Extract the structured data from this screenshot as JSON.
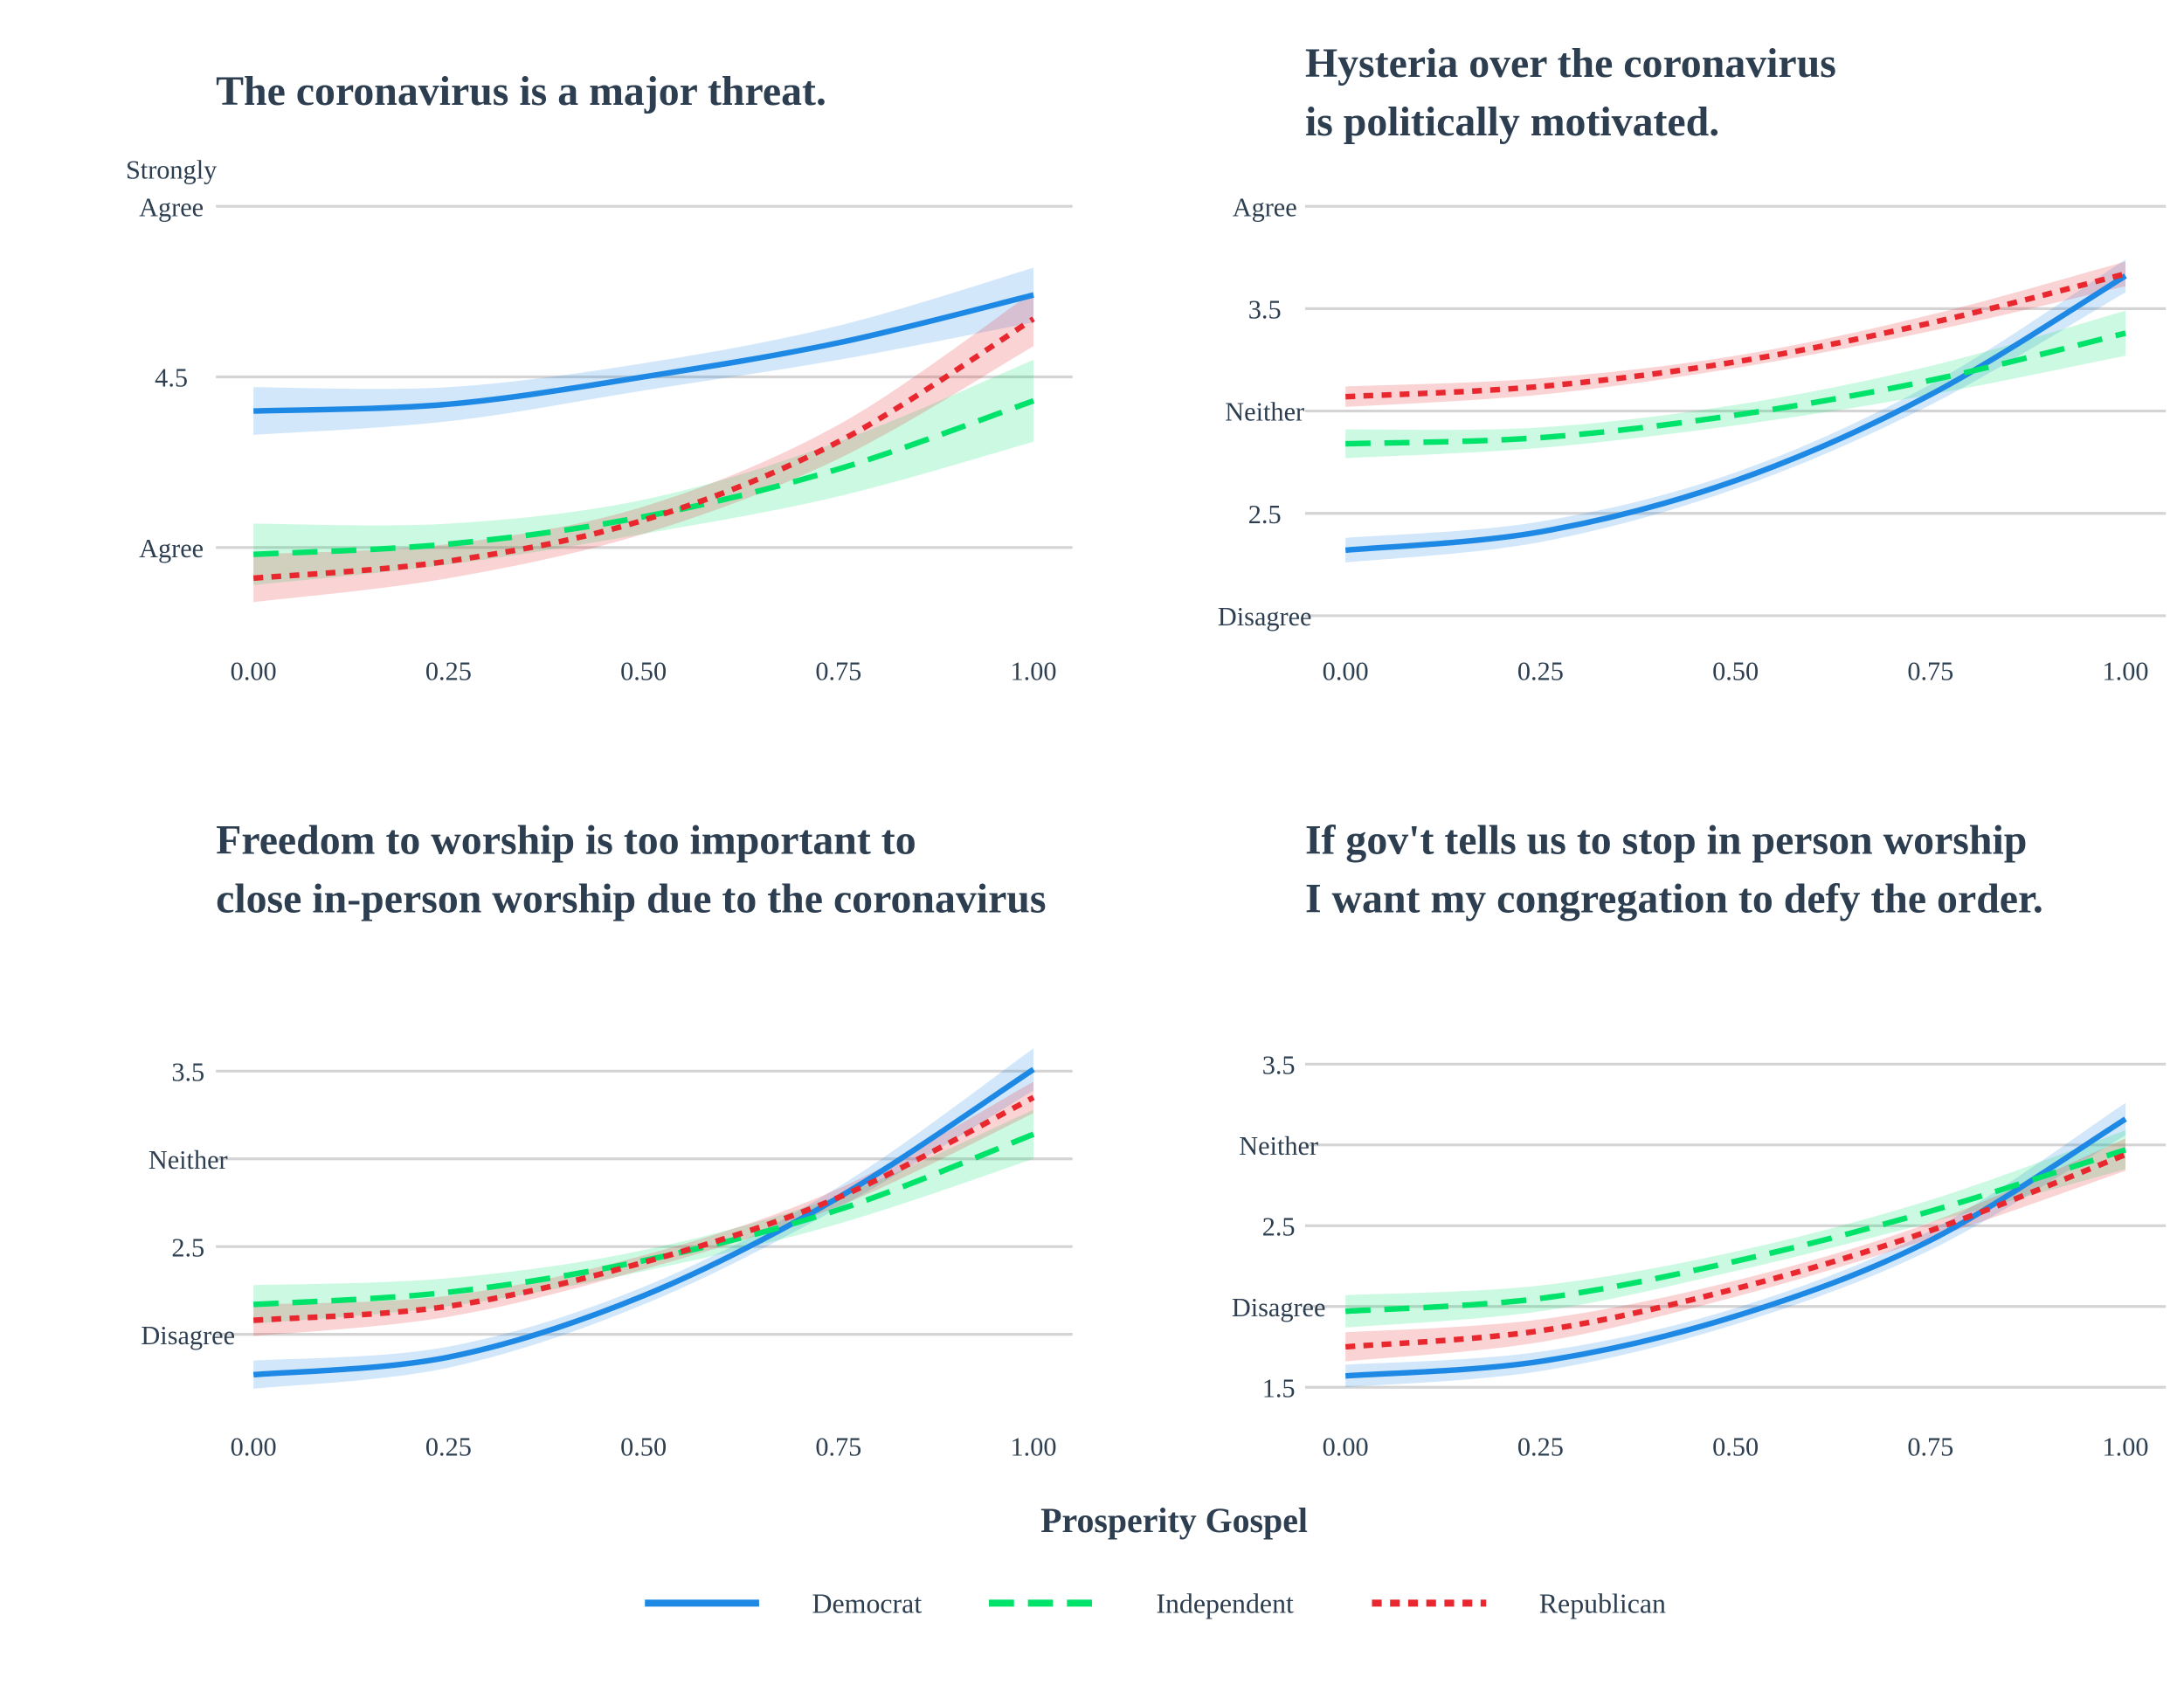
{
  "chart_data": {
    "type": "line",
    "xlabel": "Prosperity Gospel",
    "legend": {
      "position": "bottom",
      "entries": [
        "Democrat",
        "Independent",
        "Republican"
      ]
    },
    "series_styles": [
      {
        "name": "Democrat",
        "color": "#1e88e5",
        "dash": "solid"
      },
      {
        "name": "Independent",
        "color": "#00e36a",
        "dash": "dashed"
      },
      {
        "name": "Republican",
        "color": "#e8282e",
        "dash": "dotted"
      }
    ],
    "x": [
      0,
      0.25,
      0.5,
      0.75,
      1.0
    ],
    "x_ticks": [
      "0.00",
      "0.25",
      "0.50",
      "0.75",
      "1.00"
    ],
    "panels": [
      {
        "title": [
          "The coronavirus is a major threat."
        ],
        "y_ticks": [
          {
            "value": 5,
            "label": [
              "Strongly",
              "Agree"
            ]
          },
          {
            "value": 4.5,
            "label": [
              "4.5"
            ]
          },
          {
            "value": 4,
            "label": [
              "Agree"
            ]
          }
        ],
        "series": [
          {
            "name": "Democrat",
            "values": [
              4.4,
              4.42,
              4.5,
              4.6,
              4.74
            ],
            "ci": [
              0.07,
              0.05,
              0.04,
              0.05,
              0.08
            ]
          },
          {
            "name": "Independent",
            "values": [
              3.98,
              4.01,
              4.09,
              4.23,
              4.43
            ],
            "ci": [
              0.09,
              0.06,
              0.05,
              0.08,
              0.12
            ]
          },
          {
            "name": "Republican",
            "values": [
              3.91,
              3.96,
              4.08,
              4.31,
              4.67
            ],
            "ci": [
              0.07,
              0.05,
              0.04,
              0.05,
              0.08
            ]
          }
        ]
      },
      {
        "title": [
          "Hysteria over the coronavirus",
          "is politically motivated."
        ],
        "y_ticks": [
          {
            "value": 4,
            "label": [
              "Agree"
            ]
          },
          {
            "value": 3.5,
            "label": [
              "3.5"
            ]
          },
          {
            "value": 3,
            "label": [
              "Neither"
            ]
          },
          {
            "value": 2.5,
            "label": [
              "2.5"
            ]
          },
          {
            "value": 2,
            "label": [
              "Disagree"
            ]
          }
        ],
        "series": [
          {
            "name": "Democrat",
            "values": [
              2.32,
              2.41,
              2.66,
              3.08,
              3.66
            ],
            "ci": [
              0.06,
              0.05,
              0.04,
              0.05,
              0.08
            ]
          },
          {
            "name": "Independent",
            "values": [
              2.84,
              2.87,
              2.98,
              3.15,
              3.38
            ],
            "ci": [
              0.07,
              0.05,
              0.05,
              0.07,
              0.11
            ]
          },
          {
            "name": "Republican",
            "values": [
              3.07,
              3.12,
              3.24,
              3.43,
              3.67
            ],
            "ci": [
              0.05,
              0.04,
              0.03,
              0.04,
              0.06
            ]
          }
        ]
      },
      {
        "title": [
          "Freedom to worship is too important to",
          "close in-person worship due to the coronavirus"
        ],
        "y_ticks": [
          {
            "value": 3.5,
            "label": [
              "3.5"
            ]
          },
          {
            "value": 3,
            "label": [
              "Neither"
            ]
          },
          {
            "value": 2.5,
            "label": [
              "2.5"
            ]
          },
          {
            "value": 2,
            "label": [
              "Disagree"
            ]
          }
        ],
        "series": [
          {
            "name": "Democrat",
            "values": [
              1.77,
              1.87,
              2.22,
              2.78,
              3.51
            ],
            "ci": [
              0.08,
              0.06,
              0.05,
              0.06,
              0.12
            ]
          },
          {
            "name": "Independent",
            "values": [
              2.17,
              2.24,
              2.42,
              2.71,
              3.14
            ],
            "ci": [
              0.11,
              0.08,
              0.06,
              0.08,
              0.14
            ]
          },
          {
            "name": "Republican",
            "values": [
              2.08,
              2.16,
              2.41,
              2.78,
              3.35
            ],
            "ci": [
              0.09,
              0.06,
              0.04,
              0.05,
              0.09
            ]
          }
        ]
      },
      {
        "title": [
          "If gov't tells us to stop in person worship",
          "I want my congregation to defy the order."
        ],
        "y_ticks": [
          {
            "value": 3.5,
            "label": [
              "3.5"
            ]
          },
          {
            "value": 3,
            "label": [
              "Neither"
            ]
          },
          {
            "value": 2.5,
            "label": [
              "2.5"
            ]
          },
          {
            "value": 2,
            "label": [
              "Disagree"
            ]
          },
          {
            "value": 1.5,
            "label": [
              "1.5"
            ]
          }
        ],
        "series": [
          {
            "name": "Democrat",
            "values": [
              1.57,
              1.66,
              1.94,
              2.41,
              3.16
            ],
            "ci": [
              0.07,
              0.06,
              0.05,
              0.06,
              0.1
            ]
          },
          {
            "name": "Independent",
            "values": [
              1.97,
              2.05,
              2.28,
              2.59,
              2.97
            ],
            "ci": [
              0.1,
              0.08,
              0.06,
              0.07,
              0.12
            ]
          },
          {
            "name": "Republican",
            "values": [
              1.75,
              1.85,
              2.11,
              2.47,
              2.94
            ],
            "ci": [
              0.09,
              0.07,
              0.05,
              0.05,
              0.1
            ]
          }
        ]
      }
    ]
  }
}
